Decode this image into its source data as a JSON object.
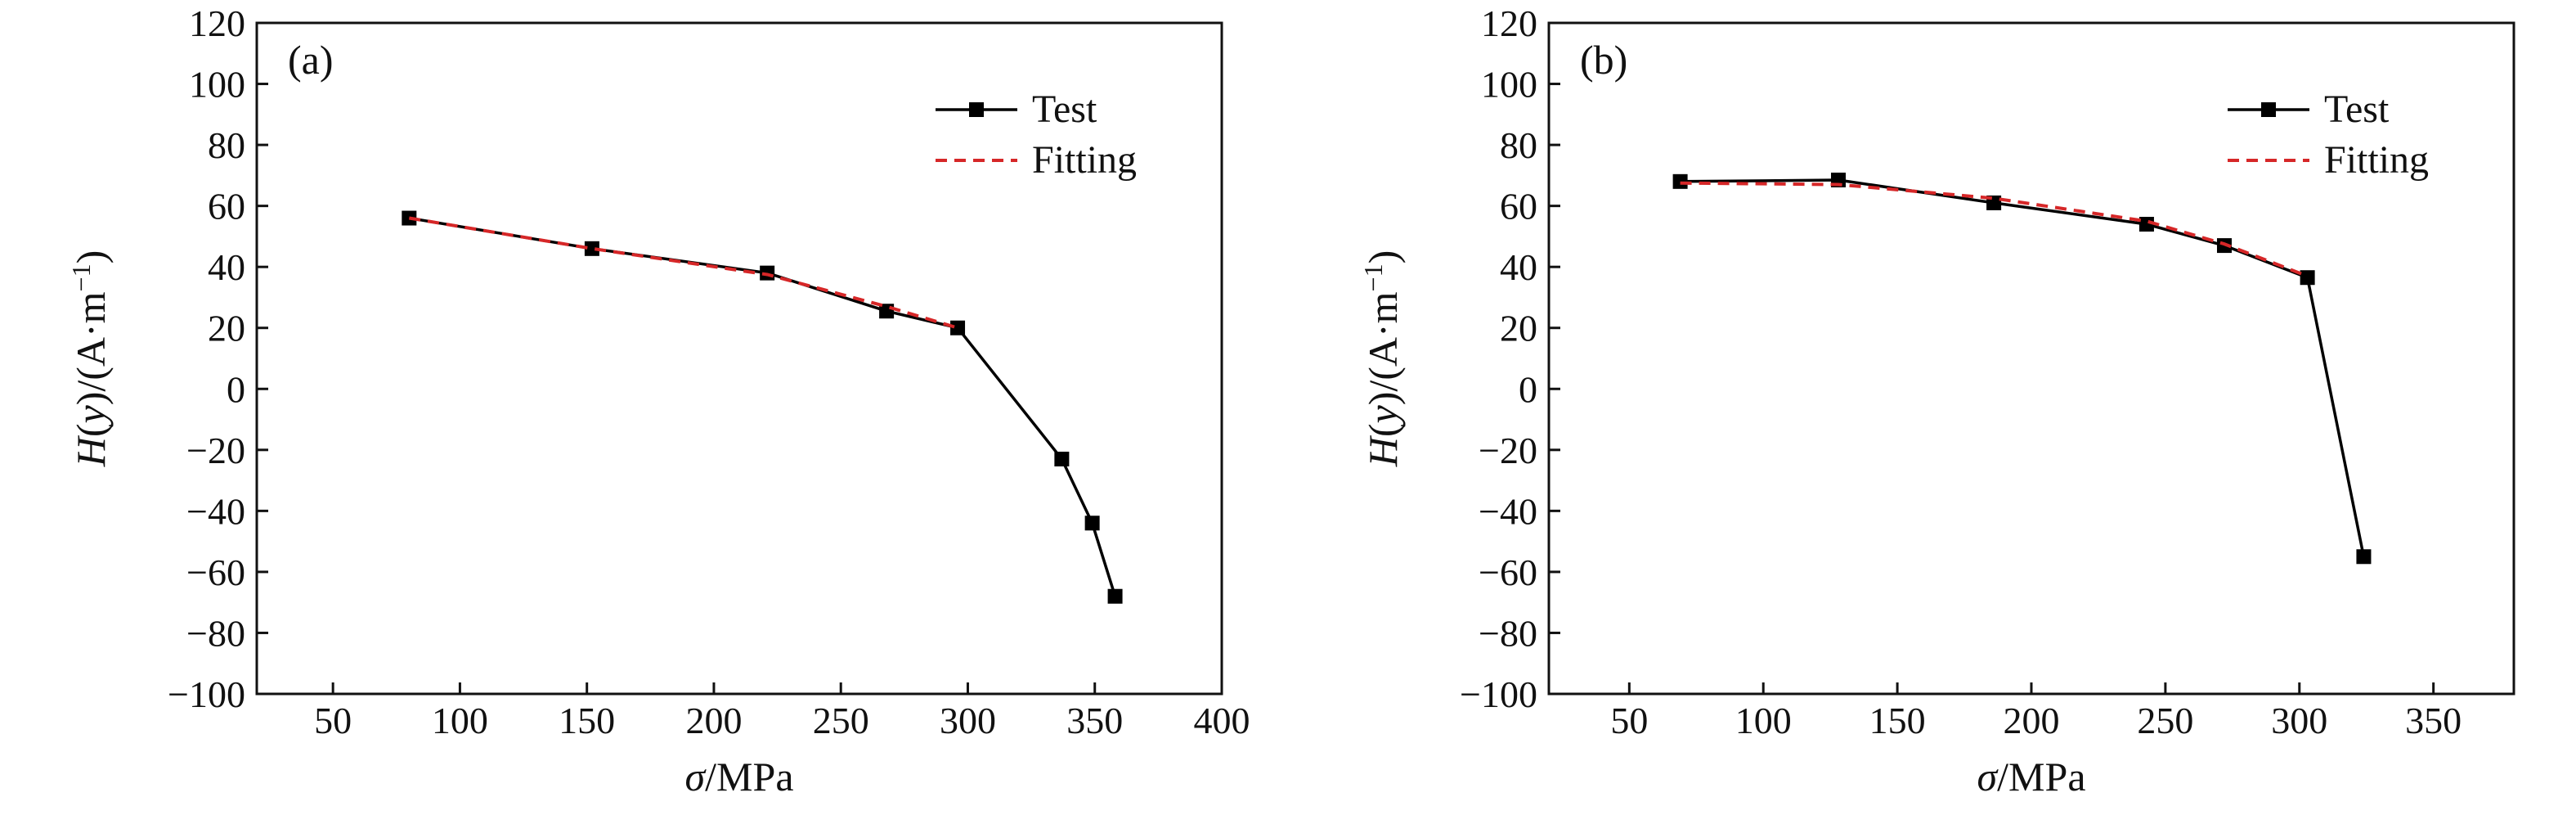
{
  "chart_data": [
    {
      "type": "line",
      "panel_label": "(a)",
      "xlabel_parts": [
        "σ",
        "/MPa"
      ],
      "ylabel_parts": [
        "H",
        "(",
        "y",
        ")/(A·m",
        "−1",
        ")"
      ],
      "xlim": [
        20,
        400
      ],
      "ylim": [
        -100,
        120
      ],
      "xticks": [
        50,
        100,
        150,
        200,
        250,
        300,
        350,
        400
      ],
      "yticks": [
        -100,
        -80,
        -60,
        -40,
        -20,
        0,
        20,
        40,
        60,
        80,
        100,
        120
      ],
      "ytick_labels": [
        "−100",
        "−80",
        "−60",
        "−40",
        "−20",
        "0",
        "20",
        "40",
        "60",
        "80",
        "100",
        "120"
      ],
      "legend_position": "top-right",
      "series": [
        {
          "name": "Test",
          "style": "solid-square",
          "color": "#000000",
          "x": [
            80,
            152,
            221,
            268,
            296,
            337,
            349,
            358
          ],
          "y": [
            56,
            46,
            38,
            25.5,
            20,
            -23,
            -44,
            -68
          ]
        },
        {
          "name": "Fitting",
          "style": "dashed",
          "color": "#d62728",
          "x": [
            80,
            152,
            221,
            268,
            296
          ],
          "y": [
            56,
            46,
            37.5,
            27,
            20
          ]
        }
      ]
    },
    {
      "type": "line",
      "panel_label": "(b)",
      "xlabel_parts": [
        "σ",
        "/MPa"
      ],
      "ylabel_parts": [
        "H",
        "(",
        "y",
        ")/(A·m",
        "−1",
        ")"
      ],
      "xlim": [
        20,
        380
      ],
      "ylim": [
        -100,
        120
      ],
      "xticks": [
        50,
        100,
        150,
        200,
        250,
        300,
        350
      ],
      "yticks": [
        -100,
        -80,
        -60,
        -40,
        -20,
        0,
        20,
        40,
        60,
        80,
        100,
        120
      ],
      "ytick_labels": [
        "−100",
        "−80",
        "−60",
        "−40",
        "−20",
        "0",
        "20",
        "40",
        "60",
        "80",
        "100",
        "120"
      ],
      "legend_position": "top-right",
      "series": [
        {
          "name": "Test",
          "style": "solid-square",
          "color": "#000000",
          "x": [
            69,
            128,
            186,
            243,
            272,
            303,
            324
          ],
          "y": [
            68,
            68.5,
            61,
            54,
            47,
            36.5,
            -55
          ]
        },
        {
          "name": "Fitting",
          "style": "dashed",
          "color": "#d62728",
          "x": [
            69,
            128,
            186,
            243,
            272,
            303
          ],
          "y": [
            67.5,
            67,
            62.5,
            55,
            47.5,
            37
          ]
        }
      ]
    }
  ]
}
